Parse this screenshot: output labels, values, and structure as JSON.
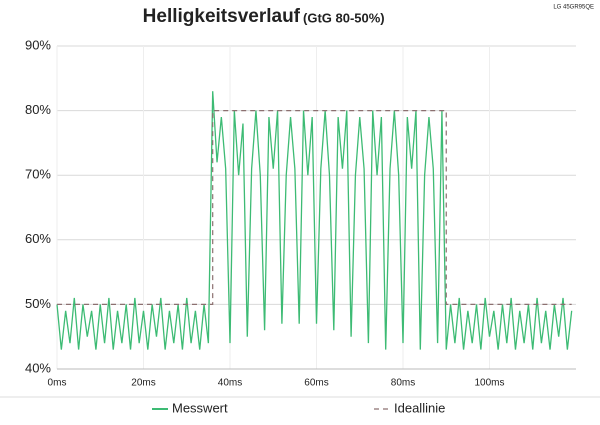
{
  "chart_data": {
    "type": "line",
    "title": "Helligkeitsverlauf",
    "subtitle": "(GtG 80-50%)",
    "annotation": "LG 45GR95QE",
    "xlim": [
      0,
      120
    ],
    "xticks": [
      {
        "value": 0,
        "label": "0ms"
      },
      {
        "value": 20,
        "label": "20ms"
      },
      {
        "value": 40,
        "label": "40ms"
      },
      {
        "value": 60,
        "label": "60ms"
      },
      {
        "value": 80,
        "label": "80ms"
      },
      {
        "value": 100,
        "label": "100ms"
      }
    ],
    "ylim": [
      40,
      90
    ],
    "yticks": [
      {
        "value": 40,
        "label": "40%"
      },
      {
        "value": 50,
        "label": "50%"
      },
      {
        "value": 60,
        "label": "60%"
      },
      {
        "value": 70,
        "label": "70%"
      },
      {
        "value": 80,
        "label": "80%"
      },
      {
        "value": 90,
        "label": "90%"
      }
    ],
    "grid": true,
    "legend": "bottom",
    "series": [
      {
        "name": "Messwert",
        "color": "#3dbb74",
        "dash": false,
        "x": [
          0,
          1,
          2,
          3,
          4,
          5,
          6,
          7,
          8,
          9,
          10,
          11,
          12,
          13,
          14,
          15,
          16,
          17,
          18,
          19,
          20,
          21,
          22,
          23,
          24,
          25,
          26,
          27,
          28,
          29,
          30,
          31,
          32,
          33,
          34,
          35,
          36,
          37,
          38,
          39,
          40,
          41,
          42,
          43,
          44,
          45,
          46,
          47,
          48,
          49,
          50,
          51,
          52,
          53,
          54,
          55,
          56,
          57,
          58,
          59,
          60,
          61,
          62,
          63,
          64,
          65,
          66,
          67,
          68,
          69,
          70,
          71,
          72,
          73,
          74,
          75,
          76,
          77,
          78,
          79,
          80,
          81,
          82,
          83,
          84,
          85,
          86,
          87,
          88,
          89,
          90,
          91,
          92,
          93,
          94,
          95,
          96,
          97,
          98,
          99,
          100,
          101,
          102,
          103,
          104,
          105,
          106,
          107,
          108,
          109,
          110,
          111,
          112,
          113,
          114,
          115,
          116,
          117,
          118,
          119
        ],
        "values": [
          50,
          43,
          49,
          44,
          51,
          43,
          50,
          45,
          49,
          43,
          50,
          44,
          51,
          43,
          49,
          44,
          50,
          43,
          51,
          44,
          49,
          43,
          50,
          45,
          51,
          43,
          49,
          44,
          50,
          43,
          51,
          44,
          49,
          43,
          50,
          44,
          83,
          72,
          79,
          71,
          44,
          80,
          70,
          78,
          45,
          71,
          80,
          70,
          46,
          79,
          71,
          80,
          47,
          70,
          79,
          71,
          47,
          80,
          70,
          79,
          47,
          71,
          80,
          70,
          46,
          79,
          71,
          80,
          45,
          70,
          79,
          71,
          44,
          80,
          70,
          79,
          43,
          71,
          80,
          70,
          44,
          79,
          71,
          80,
          43,
          70,
          79,
          71,
          44,
          80,
          43,
          50,
          44,
          51,
          43,
          49,
          44,
          50,
          43,
          51,
          45,
          49,
          43,
          50,
          44,
          51,
          43,
          49,
          44,
          50,
          43,
          51,
          44,
          49,
          43,
          50,
          45,
          51,
          43,
          49
        ]
      },
      {
        "name": "Ideallinie",
        "color": "#8c7070",
        "dash": true,
        "x": [
          0,
          36,
          36,
          90,
          90,
          119
        ],
        "values": [
          50,
          50,
          80,
          80,
          50,
          50
        ]
      }
    ]
  }
}
